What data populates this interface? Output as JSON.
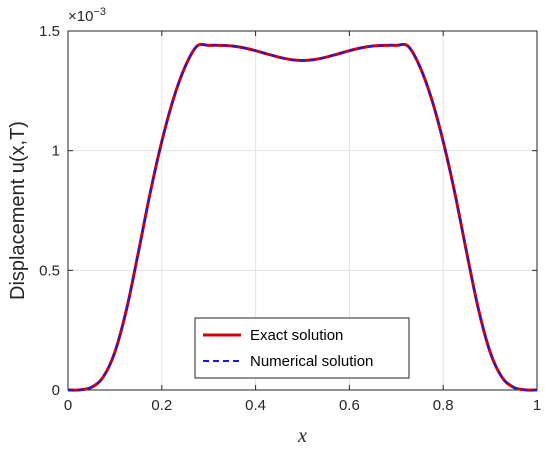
{
  "chart_data": {
    "type": "line",
    "xlabel": "x",
    "ylabel": "Displacement u(x,T)",
    "xlim": [
      0,
      1
    ],
    "ylim": [
      0,
      1.5
    ],
    "y_exponent_base": "×10",
    "y_exponent_power": "−3",
    "x_ticks": [
      0,
      0.2,
      0.4,
      0.6,
      0.8,
      1
    ],
    "x_tick_labels": [
      "0",
      "0.2",
      "0.4",
      "0.6",
      "0.8",
      "1"
    ],
    "y_ticks": [
      0,
      0.5,
      1,
      1.5
    ],
    "y_tick_labels": [
      "0",
      "0.5",
      "1",
      "1.5"
    ],
    "grid": true,
    "legend_position": "bottom-center",
    "series": [
      {
        "name": "Exact solution",
        "color": "#d40000",
        "style": "solid",
        "x": [
          0,
          0.025,
          0.05,
          0.075,
          0.1,
          0.125,
          0.15,
          0.175,
          0.2,
          0.225,
          0.25,
          0.275,
          0.3,
          0.325,
          0.35,
          0.375,
          0.4,
          0.425,
          0.45,
          0.475,
          0.5,
          0.525,
          0.55,
          0.575,
          0.6,
          0.625,
          0.65,
          0.675,
          0.7,
          0.725,
          0.75,
          0.775,
          0.8,
          0.825,
          0.85,
          0.875,
          0.9,
          0.925,
          0.95,
          0.975,
          1
        ],
        "y": [
          0,
          0.0007,
          0.0112,
          0.0541,
          0.159,
          0.3389,
          0.5748,
          0.8212,
          1.0382,
          1.2175,
          1.352,
          1.4366,
          1.44,
          1.4399,
          1.4373,
          1.4296,
          1.4178,
          1.4038,
          1.3905,
          1.3806,
          1.377,
          1.3806,
          1.3905,
          1.4038,
          1.4178,
          1.4296,
          1.4373,
          1.4399,
          1.44,
          1.4366,
          1.352,
          1.2175,
          1.0382,
          0.8212,
          0.5748,
          0.3389,
          0.159,
          0.0541,
          0.0112,
          0.0007,
          0
        ]
      },
      {
        "name": "Numerical solution",
        "color": "#1a1adc",
        "style": "dashed",
        "x": [
          0,
          0.025,
          0.05,
          0.075,
          0.1,
          0.125,
          0.15,
          0.175,
          0.2,
          0.225,
          0.25,
          0.275,
          0.3,
          0.325,
          0.35,
          0.375,
          0.4,
          0.425,
          0.45,
          0.475,
          0.5,
          0.525,
          0.55,
          0.575,
          0.6,
          0.625,
          0.65,
          0.675,
          0.7,
          0.725,
          0.75,
          0.775,
          0.8,
          0.825,
          0.85,
          0.875,
          0.9,
          0.925,
          0.95,
          0.975,
          1
        ],
        "y": [
          0,
          0.0007,
          0.0112,
          0.0541,
          0.159,
          0.3389,
          0.5748,
          0.8212,
          1.0382,
          1.2175,
          1.352,
          1.4366,
          1.44,
          1.4399,
          1.4373,
          1.4296,
          1.4178,
          1.4038,
          1.3905,
          1.3806,
          1.377,
          1.3806,
          1.3905,
          1.4038,
          1.4178,
          1.4296,
          1.4373,
          1.4399,
          1.44,
          1.4366,
          1.352,
          1.2175,
          1.0382,
          0.8212,
          0.5748,
          0.3389,
          0.159,
          0.0541,
          0.0112,
          0.0007,
          0
        ]
      }
    ]
  }
}
